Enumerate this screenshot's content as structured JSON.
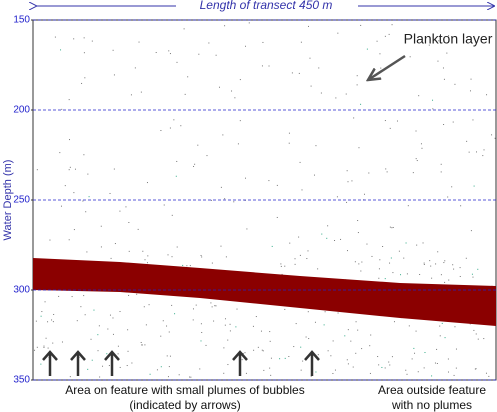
{
  "chart_data": {
    "type": "echogram",
    "title": "Length of transect 450 m",
    "y_label": "Water Depth (m)",
    "ylim": [
      150,
      350
    ],
    "yticks": [
      150,
      200,
      250,
      300,
      350
    ],
    "y_inverted": true,
    "grid": true,
    "grid_color": "#2222cc",
    "annotations": [
      "Plankton layer",
      "Area on feature with small plumes of bubbles",
      "(indicated by arrows)",
      "Area outside feature",
      "with no plumes"
    ]
  }
}
